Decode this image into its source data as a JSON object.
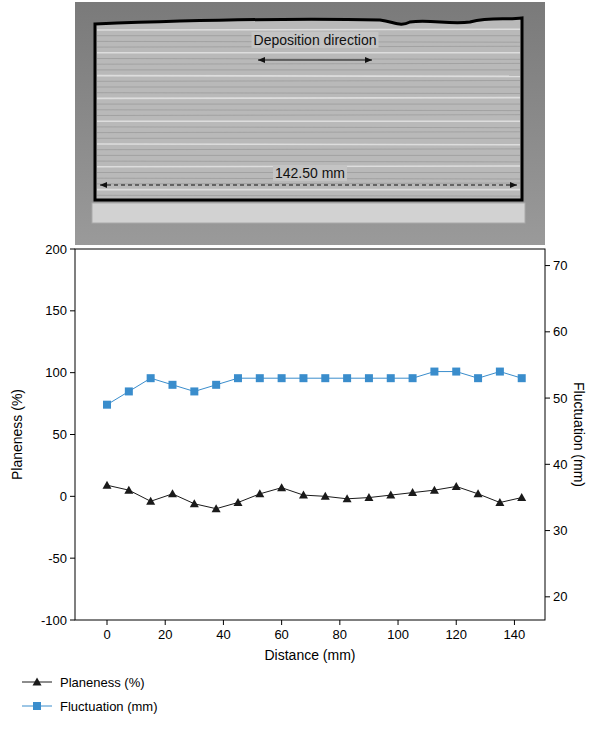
{
  "chart_data": {
    "type": "line",
    "annotations": [
      "Deposition direction",
      "142.50 mm"
    ],
    "xlabel": "Distance (mm)",
    "ylabel": "Planeness (%)",
    "y2label": "Fluctuation (mm)",
    "x": [
      0,
      7.5,
      15,
      22.5,
      30,
      37.5,
      45,
      52.5,
      60,
      67.5,
      75,
      82.5,
      90,
      97.5,
      105,
      112.5,
      120,
      127.5,
      135,
      142.5
    ],
    "series": [
      {
        "name": "Planeness (%)",
        "color": "#1a1a1a",
        "marker": "triangle",
        "line_style": "solid",
        "values": [
          9,
          5,
          -4,
          2,
          -6,
          -10,
          -5,
          2,
          7,
          1,
          0,
          -2,
          -1,
          1,
          3,
          5,
          8,
          2,
          -5,
          -1
        ]
      },
      {
        "name": "Fluctuation (mm)",
        "color": "#3a8dcc",
        "marker": "square",
        "line_style": "solid",
        "axis": "y2",
        "values": [
          49,
          51,
          53,
          52,
          51,
          52,
          53,
          53,
          53,
          53,
          53,
          53,
          53,
          53,
          53,
          54,
          54,
          53,
          54,
          53
        ]
      }
    ],
    "xlim": [
      -11,
      150.5
    ],
    "xticks": [
      0,
      20,
      40,
      60,
      80,
      100,
      120,
      140
    ],
    "ylim": [
      -100,
      200
    ],
    "yticks": [
      -100,
      -50,
      0,
      50,
      100,
      150,
      200
    ],
    "y2lim": [
      16.5,
      72.5
    ],
    "y2ticks": [
      20,
      30,
      40,
      50,
      60,
      70
    ],
    "grid": false,
    "legend": "bottom"
  }
}
